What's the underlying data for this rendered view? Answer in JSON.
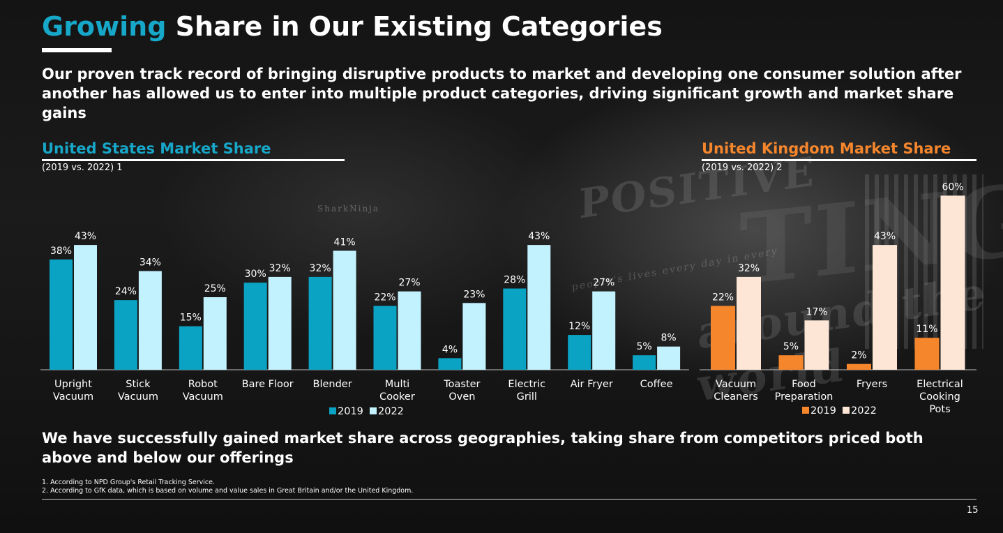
{
  "header": {
    "title_accent": "Growing",
    "title_rest": "Share in Our Existing Categories",
    "lead": "Our proven track record of bringing disruptive products to market and developing one consumer solution after another has allowed us to enter into multiple product categories, driving significant growth and market share gains"
  },
  "background": {
    "sign_1": "POSITIVE",
    "sign_2": "TING",
    "sign_3": "around the world",
    "sign_4": "people's lives every day in every",
    "sign_5": "SharkNinja"
  },
  "us_section": {
    "title": "United States Market Share",
    "subtitle": "(2019 vs. 2022) 1"
  },
  "uk_section": {
    "title": "United Kingdom Market Share",
    "subtitle": "(2019 vs. 2022) 2"
  },
  "colors": {
    "us_2019": "#0aa3c4",
    "us_2022": "#c3f2ff",
    "uk_2019": "#f6862c",
    "uk_2022": "#fde6d6",
    "title_accent": "#17a7c9",
    "uk_accent": "#f6862c"
  },
  "chart_data": [
    {
      "type": "bar",
      "title": "United States Market Share",
      "subtitle": "(2019 vs. 2022) 1",
      "categories": [
        [
          "Upright",
          "Vacuum"
        ],
        [
          "Stick",
          "Vacuum"
        ],
        [
          "Robot",
          "Vacuum"
        ],
        [
          "Bare Floor"
        ],
        [
          "Blender"
        ],
        [
          "Multi",
          "Cooker"
        ],
        [
          "Toaster",
          "Oven"
        ],
        [
          "Electric",
          "Grill"
        ],
        [
          "Air Fryer"
        ],
        [
          "Coffee"
        ]
      ],
      "series": [
        {
          "name": "2019",
          "values": [
            38,
            24,
            15,
            30,
            32,
            22,
            4,
            28,
            12,
            5
          ],
          "labels": [
            "38%",
            "24%",
            "15%",
            "30%",
            "32%",
            "22%",
            "4%",
            "28%",
            "12%",
            "5%"
          ]
        },
        {
          "name": "2022",
          "values": [
            43,
            34,
            25,
            32,
            41,
            27,
            23,
            43,
            27,
            8
          ],
          "labels": [
            "43%",
            "34%",
            "25%",
            "32%",
            "41%",
            "27%",
            "23%",
            "43%",
            "27%",
            "8%"
          ]
        }
      ],
      "ylim": [
        0,
        60
      ],
      "legend": "bottom-center",
      "grid": false
    },
    {
      "type": "bar",
      "title": "United Kingdom Market Share",
      "subtitle": "(2019 vs. 2022) 2",
      "categories": [
        [
          "Vacuum",
          "Cleaners"
        ],
        [
          "Food",
          "Preparation"
        ],
        [
          "Fryers"
        ],
        [
          "Electrical",
          "Cooking",
          "Pots"
        ]
      ],
      "series": [
        {
          "name": "2019",
          "values": [
            22,
            5,
            2,
            11
          ],
          "labels": [
            "22%",
            "5%",
            "2%",
            "11%"
          ]
        },
        {
          "name": "2022",
          "values": [
            32,
            17,
            43,
            60
          ],
          "labels": [
            "32%",
            "17%",
            "43%",
            "60%"
          ]
        }
      ],
      "ylim": [
        0,
        60
      ],
      "legend": "bottom-center",
      "grid": false
    }
  ],
  "footer": {
    "summary": "We have successfully gained market share across geographies, taking share from competitors priced both above and below our offerings",
    "footnotes": [
      "1.  According to NPD Group's Retail Tracking Service.",
      "2.  According to GfK data, which is based on volume and value sales in Great Britain and/or the United Kingdom."
    ],
    "page_number": "15"
  }
}
